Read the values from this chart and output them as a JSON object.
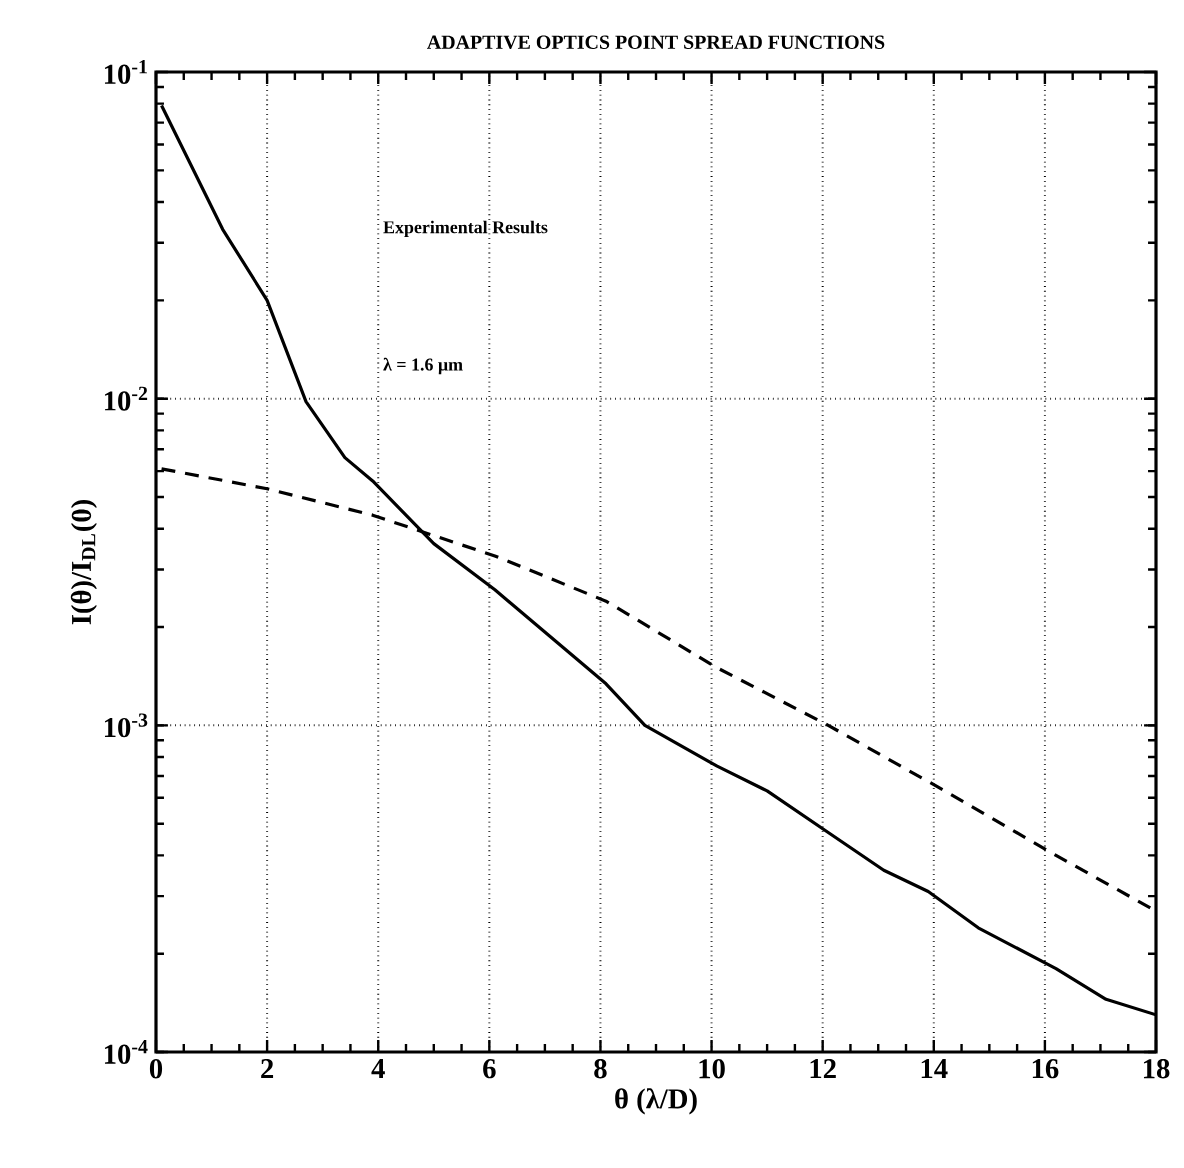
{
  "chart_data": {
    "type": "line",
    "title": "ADAPTIVE OPTICS POINT SPREAD FUNCTIONS",
    "xlabel": "θ (λ/D)",
    "ylabel": "I(θ)/I$_{DL}$(0)",
    "annotations": [
      "Experimental Results",
      "λ = 1.6 μm"
    ],
    "log": "y",
    "grid": true,
    "marker": "none",
    "xlim": [
      0,
      18
    ],
    "xticks": [
      0,
      2,
      4,
      6,
      8,
      10,
      12,
      14,
      16,
      18
    ],
    "ylim": [
      0.0001,
      0.1
    ],
    "yticks": [
      {
        "value": 0.0001,
        "label": "10$^{-4}$"
      },
      {
        "value": 0.001,
        "label": "10$^{-3}$"
      },
      {
        "value": 0.01,
        "label": "10$^{-2}$"
      },
      {
        "value": 0.1,
        "label": "10$^{-1}$"
      }
    ],
    "series": [
      {
        "color": "#000000",
        "line_style": "solid",
        "x": [
          0.1,
          1.2,
          2.0,
          2.7,
          3.4,
          3.9,
          5.0,
          6.1,
          8.1,
          8.8,
          10.1,
          11.0,
          12.1,
          13.1,
          13.9,
          14.8,
          16.2,
          17.1,
          18.0
        ],
        "values": [
          0.079,
          0.033,
          0.02,
          0.0098,
          0.0066,
          0.0056,
          0.0036,
          0.0026,
          0.00134,
          0.001,
          0.00075,
          0.00063,
          0.00047,
          0.00036,
          0.00031,
          0.00024,
          0.00018,
          0.000145,
          0.00013
        ]
      },
      {
        "color": "#000000",
        "line_style": "dashed",
        "x": [
          0.1,
          2.0,
          3.9,
          6.1,
          8.1,
          10.1,
          12.1,
          14.2,
          16.2,
          18.0
        ],
        "values": [
          0.0061,
          0.0053,
          0.0044,
          0.0033,
          0.0024,
          0.0015,
          0.001,
          0.00063,
          0.0004,
          0.00027
        ]
      }
    ]
  }
}
